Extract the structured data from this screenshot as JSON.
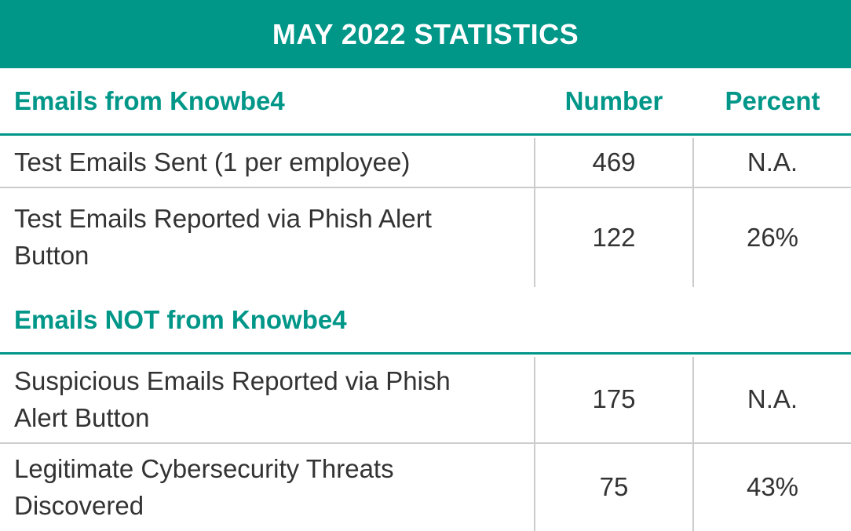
{
  "banner": {
    "title": "MAY 2022 STATISTICS"
  },
  "columns": {
    "number": "Number",
    "percent": "Percent"
  },
  "sections": [
    {
      "title": "Emails from Knowbe4",
      "rows": [
        {
          "label": "Test Emails Sent (1 per employee)",
          "number": "469",
          "percent": "N.A."
        },
        {
          "label": "Test Emails Reported via Phish Alert Button",
          "number": "122",
          "percent": "26%"
        }
      ]
    },
    {
      "title": "Emails NOT from Knowbe4",
      "rows": [
        {
          "label": "Suspicious Emails Reported via Phish Alert Button",
          "number": "175",
          "percent": "N.A."
        },
        {
          "label": "Legitimate Cybersecurity Threats Discovered",
          "number": "75",
          "percent": "43%"
        }
      ]
    }
  ],
  "colors": {
    "accent": "#009688",
    "text": "#333333",
    "divider": "#cccccc"
  }
}
